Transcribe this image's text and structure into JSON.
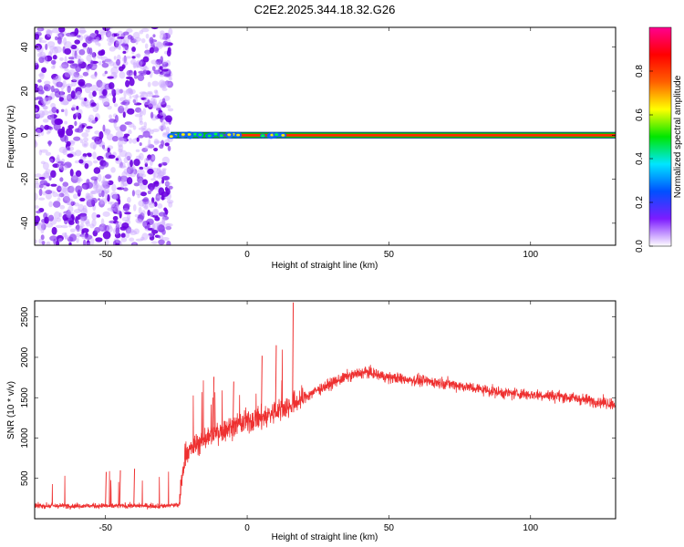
{
  "title": "C2E2.2025.344.18.32.G26",
  "chart_data": [
    {
      "type": "heatmap",
      "name": "spectrogram",
      "xlabel": "Height of straight line (km)",
      "ylabel": "Frequency (Hz)",
      "xlim": [
        -75,
        130
      ],
      "ylim": [
        -50,
        49
      ],
      "xticks": [
        -50,
        0,
        50,
        100
      ],
      "xtick_labels": [
        "-50",
        "0",
        "50",
        "100"
      ],
      "yticks": [
        -40,
        -20,
        0,
        20,
        40
      ],
      "ytick_labels": [
        "-40",
        "-20",
        "0",
        "20",
        "40"
      ],
      "noise_region_km": [
        -75,
        -28
      ],
      "signal_band_hz": [
        -1.5,
        1.5
      ],
      "signal_start_km": -27,
      "colorbar": {
        "label": "Normalized spectral amplitude",
        "range": [
          0,
          1
        ],
        "ticks": [
          0.0,
          0.2,
          0.4,
          0.6,
          0.8
        ],
        "tick_labels": [
          "0.0",
          "0.2",
          "0.4",
          "0.6",
          "0.8"
        ],
        "colors": [
          "#ffffff",
          "#7d1cff",
          "#0050ff",
          "#00e6ff",
          "#00e600",
          "#ffff00",
          "#ff6000",
          "#ff0000",
          "#ff0090"
        ]
      }
    },
    {
      "type": "line",
      "name": "snr",
      "xlabel": "Height of straight line (km)",
      "ylabel": "SNR (10 * v/v)",
      "xlim": [
        -75,
        130
      ],
      "ylim": [
        0,
        2700
      ],
      "xticks": [
        -50,
        0,
        50,
        100
      ],
      "xtick_labels": [
        "-50",
        "0",
        "50",
        "100"
      ],
      "yticks": [
        500,
        1000,
        1500,
        2000,
        2500
      ],
      "ytick_labels": [
        "500",
        "1000",
        "1500",
        "2000",
        "2500"
      ],
      "color": "#ee3030",
      "profile_x": [
        -75,
        -30,
        -24,
        -22,
        -15,
        -5,
        5,
        15,
        25,
        35,
        42,
        50,
        70,
        90,
        110,
        130
      ],
      "profile_y": [
        160,
        160,
        170,
        800,
        1000,
        1150,
        1250,
        1400,
        1600,
        1760,
        1820,
        1750,
        1680,
        1560,
        1520,
        1420
      ],
      "spikes": [
        {
          "x": -50,
          "y": 580
        },
        {
          "x": -45,
          "y": 600
        },
        {
          "x": -40,
          "y": 620
        },
        {
          "x": -12,
          "y": 1760
        },
        {
          "x": -5,
          "y": 1700
        },
        {
          "x": 5,
          "y": 2020
        },
        {
          "x": 10,
          "y": 2150
        },
        {
          "x": 16,
          "y": 2680
        }
      ]
    }
  ]
}
